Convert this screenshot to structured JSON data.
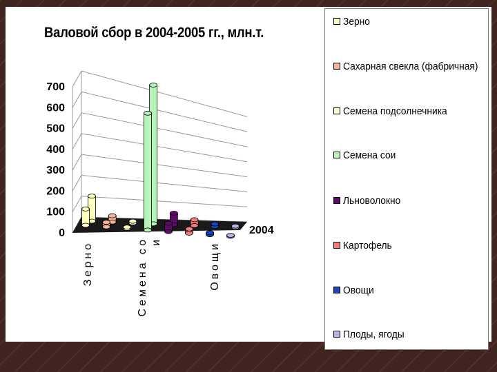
{
  "title": "Валовой сбор в 2004-2005 гг., млн.т.",
  "chart_data": {
    "type": "bar",
    "categories": [
      "Зерно",
      "Сахарная свекла (фабричная)",
      "Семена подсолнечника",
      "Семена сои",
      "Льноволокно",
      "Картофель",
      "Овощи",
      "Плоды, ягоды"
    ],
    "category_axis_labels": [
      "Зерно",
      "Семена со и",
      "Овощи"
    ],
    "depth_labels": [
      "2004"
    ],
    "yticks": [
      "0",
      "100",
      "200",
      "300",
      "400",
      "500",
      "600",
      "700"
    ],
    "ylim": [
      0,
      700
    ],
    "grid": true,
    "legend_position": "right",
    "series": [
      {
        "values": [
          78,
          22,
          6,
          560,
          40,
          20,
          10,
          5
        ]
      },
      {
        "values": [
          120,
          30,
          8,
          665,
          55,
          28,
          12,
          6
        ]
      }
    ],
    "colors": [
      "#ffffc0",
      "#f7b29a",
      "#ffffc8",
      "#b8f4b8",
      "#5e0a6b",
      "#f37c7c",
      "#1a46c0",
      "#b4b4e6"
    ]
  },
  "legend": [
    {
      "label": "Зерно"
    },
    {
      "label": "Сахарная свекла (фабричная)"
    },
    {
      "label": "Семена подсолнечника"
    },
    {
      "label": " Семена сои"
    },
    {
      "label": "Льноволокно"
    },
    {
      "label": "Картофель"
    },
    {
      "label": "Овощи"
    },
    {
      "label": "Плоды, ягоды"
    }
  ]
}
